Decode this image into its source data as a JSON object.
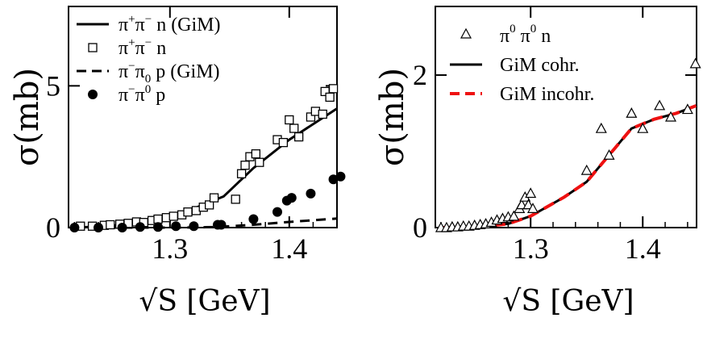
{
  "chart_data": [
    {
      "type": "scatter",
      "panel": "left",
      "xlabel": "√S  [GeV]",
      "ylabel": "σ(mb)",
      "xlim": [
        1.215,
        1.44
      ],
      "ylim": [
        0,
        7.8
      ],
      "xticks": [
        {
          "value": 1.3,
          "label": "1.3"
        },
        {
          "value": 1.4,
          "label": "1.4"
        }
      ],
      "yticks": [
        {
          "value": 0,
          "label": "0"
        },
        {
          "value": 5,
          "label": "5"
        }
      ],
      "legend_position": "top-left",
      "series": [
        {
          "name": "π+π−n (GiM)",
          "legend": {
            "base": "π",
            "sup1": "+",
            "mid": "π",
            "sup2": "−",
            "sub2": "",
            "tail": "n (GiM)"
          },
          "style": "solid-line",
          "x": [
            1.22,
            1.25,
            1.28,
            1.31,
            1.345,
            1.37,
            1.4,
            1.44
          ],
          "y": [
            0.0,
            0.05,
            0.25,
            0.5,
            1.1,
            2.1,
            3.1,
            4.2
          ]
        },
        {
          "name": "π+π−n",
          "legend": {
            "base": "π",
            "sup1": "+",
            "mid": "π",
            "sup2": "−",
            "sub2": "",
            "tail": "n"
          },
          "style": "open-square",
          "x": [
            1.225,
            1.235,
            1.245,
            1.25,
            1.258,
            1.265,
            1.272,
            1.278,
            1.285,
            1.29,
            1.297,
            1.303,
            1.31,
            1.315,
            1.322,
            1.328,
            1.333,
            1.337,
            1.355,
            1.36,
            1.363,
            1.367,
            1.372,
            1.375,
            1.39,
            1.395,
            1.4,
            1.404,
            1.408,
            1.418,
            1.422,
            1.428,
            1.43,
            1.434,
            1.437
          ],
          "y": [
            0.05,
            0.05,
            0.08,
            0.1,
            0.12,
            0.15,
            0.2,
            0.18,
            0.25,
            0.3,
            0.35,
            0.4,
            0.45,
            0.55,
            0.6,
            0.72,
            0.8,
            1.05,
            1.0,
            1.9,
            2.2,
            2.5,
            2.6,
            2.3,
            3.1,
            3.0,
            3.8,
            3.5,
            3.2,
            3.9,
            4.1,
            4.0,
            4.8,
            4.6,
            4.9
          ]
        },
        {
          "name": "π−π0p (GiM)",
          "legend": {
            "base": "π",
            "sup1": "−",
            "mid": "π",
            "sup2": "",
            "sub2": "0",
            "tail": "p (GiM)"
          },
          "style": "dashed-line",
          "x": [
            1.22,
            1.25,
            1.28,
            1.31,
            1.34,
            1.37,
            1.4,
            1.44
          ],
          "y": [
            0.0,
            0.0,
            0.0,
            0.0,
            0.02,
            0.1,
            0.2,
            0.32
          ]
        },
        {
          "name": "π−π0p",
          "legend": {
            "base": "π",
            "sup1": "−",
            "mid": "π",
            "sup2": "0",
            "sub2": "",
            "tail": "p"
          },
          "style": "filled-circle",
          "x": [
            1.22,
            1.24,
            1.26,
            1.275,
            1.29,
            1.305,
            1.32,
            1.34,
            1.343,
            1.37,
            1.39,
            1.398,
            1.402,
            1.418,
            1.437,
            1.443
          ],
          "y": [
            0.0,
            0.0,
            0.0,
            0.02,
            0.02,
            0.05,
            0.05,
            0.1,
            0.1,
            0.3,
            0.55,
            0.95,
            1.05,
            1.2,
            1.7,
            1.8
          ]
        }
      ]
    },
    {
      "type": "scatter",
      "panel": "right",
      "xlabel": "√S  [GeV]",
      "ylabel": "σ(mb)",
      "xlim": [
        1.215,
        1.448
      ],
      "ylim": [
        0,
        2.9
      ],
      "xticks": [
        {
          "value": 1.3,
          "label": "1.3"
        },
        {
          "value": 1.4,
          "label": "1.4"
        }
      ],
      "yticks": [
        {
          "value": 0,
          "label": "0"
        },
        {
          "value": 2,
          "label": "2"
        }
      ],
      "legend_position": "top-left",
      "series": [
        {
          "name": "π0π0n",
          "legend_label": "π⁰ π⁰ n",
          "legend": {
            "base": "π",
            "sup1": "0",
            "mid": "π",
            "sup2": "0",
            "sub2": "",
            "tail": "n"
          },
          "style": "open-triangle",
          "x": [
            1.22,
            1.225,
            1.23,
            1.235,
            1.24,
            1.245,
            1.25,
            1.255,
            1.26,
            1.265,
            1.27,
            1.275,
            1.28,
            1.285,
            1.29,
            1.292,
            1.295,
            1.298,
            1.3,
            1.302,
            1.35,
            1.363,
            1.37,
            1.39,
            1.4,
            1.415,
            1.425,
            1.44,
            1.447
          ],
          "y": [
            0.0,
            0.0,
            0.01,
            0.01,
            0.02,
            0.02,
            0.03,
            0.04,
            0.05,
            0.07,
            0.1,
            0.12,
            0.14,
            0.15,
            0.25,
            0.3,
            0.4,
            0.3,
            0.45,
            0.25,
            0.75,
            1.3,
            0.95,
            1.5,
            1.3,
            1.6,
            1.45,
            1.55,
            2.15
          ]
        },
        {
          "name": "GiM cohr.",
          "legend_label": "GiM cohr.",
          "style": "solid-line",
          "x": [
            1.22,
            1.25,
            1.28,
            1.3,
            1.33,
            1.35,
            1.37,
            1.39,
            1.41,
            1.43,
            1.448
          ],
          "y": [
            0.0,
            0.0,
            0.05,
            0.15,
            0.4,
            0.6,
            0.95,
            1.3,
            1.42,
            1.5,
            1.6
          ]
        },
        {
          "name": "GiM incohr.",
          "legend_label": "GiM incohr.",
          "style": "red-dashed-line",
          "x": [
            1.22,
            1.25,
            1.28,
            1.3,
            1.33,
            1.35,
            1.37,
            1.39,
            1.41,
            1.43,
            1.448
          ],
          "y": [
            0.0,
            0.0,
            0.05,
            0.15,
            0.4,
            0.6,
            0.95,
            1.3,
            1.42,
            1.5,
            1.6
          ]
        }
      ]
    }
  ]
}
